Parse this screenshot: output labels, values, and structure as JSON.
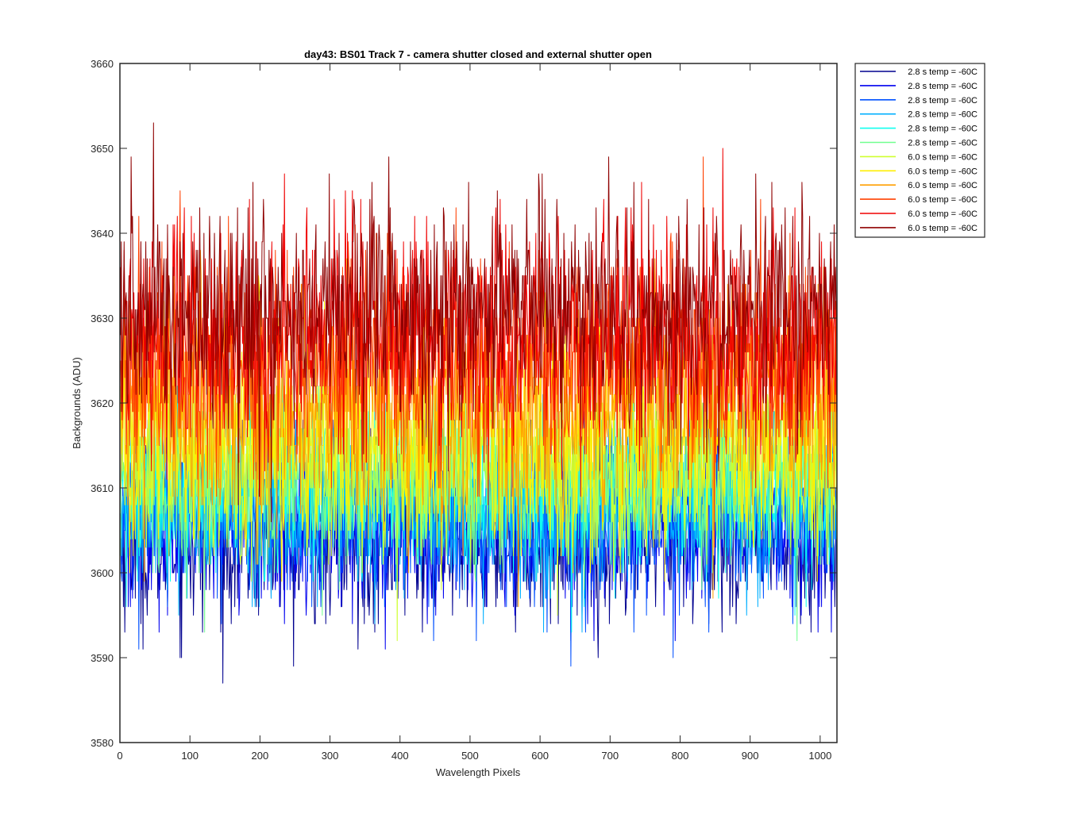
{
  "chart_data": {
    "type": "line",
    "title": "day43: BS01  Track 7 - camera shutter closed and external shutter open",
    "xlabel": "Wavelength Pixels",
    "ylabel": "Backgrounds (ADU)",
    "xlim": [
      0,
      1024
    ],
    "ylim": [
      3580,
      3660
    ],
    "xticks": [
      0,
      100,
      200,
      300,
      400,
      500,
      600,
      700,
      800,
      900,
      1000
    ],
    "yticks": [
      3580,
      3590,
      3600,
      3610,
      3620,
      3630,
      3640,
      3650,
      3660
    ],
    "grid": false,
    "legend_position": "outside-top-right",
    "n_points_per_series": 1024,
    "x_start": 1,
    "series": [
      {
        "name": "2.8 s temp = -60C",
        "color": "#00008f",
        "mean": 3604,
        "noise_sd": 5.0,
        "min": 3584,
        "max": 3616
      },
      {
        "name": "2.8 s temp = -60C",
        "color": "#0000ef",
        "mean": 3606,
        "noise_sd": 5.0,
        "min": 3588,
        "max": 3618
      },
      {
        "name": "2.8 s temp = -60C",
        "color": "#0050ff",
        "mean": 3607,
        "noise_sd": 5.0,
        "min": 3589,
        "max": 3620
      },
      {
        "name": "2.8 s temp = -60C",
        "color": "#00afff",
        "mean": 3608,
        "noise_sd": 5.0,
        "min": 3590,
        "max": 3621
      },
      {
        "name": "2.8 s temp = -60C",
        "color": "#10ffef",
        "mean": 3610,
        "noise_sd": 5.0,
        "min": 3591,
        "max": 3622
      },
      {
        "name": "2.8 s temp = -60C",
        "color": "#70ff8f",
        "mean": 3611,
        "noise_sd": 5.0,
        "min": 3587,
        "max": 3624
      },
      {
        "name": "6.0 s temp = -60C",
        "color": "#cfff30",
        "mean": 3613,
        "noise_sd": 5.5,
        "min": 3592,
        "max": 3628
      },
      {
        "name": "6.0 s temp = -60C",
        "color": "#ffef00",
        "mean": 3616,
        "noise_sd": 6.5,
        "min": 3591,
        "max": 3659
      },
      {
        "name": "6.0 s temp = -60C",
        "color": "#ff9f00",
        "mean": 3620,
        "noise_sd": 6.5,
        "min": 3596,
        "max": 3650
      },
      {
        "name": "6.0 s temp = -60C",
        "color": "#ff4000",
        "mean": 3625,
        "noise_sd": 6.5,
        "min": 3600,
        "max": 3659
      },
      {
        "name": "6.0 s temp = -60C",
        "color": "#ef0000",
        "mean": 3628,
        "noise_sd": 6.5,
        "min": 3601,
        "max": 3652
      },
      {
        "name": "6.0 s temp = -60C",
        "color": "#8f0000",
        "mean": 3631,
        "noise_sd": 6.5,
        "min": 3604,
        "max": 3656
      }
    ]
  }
}
